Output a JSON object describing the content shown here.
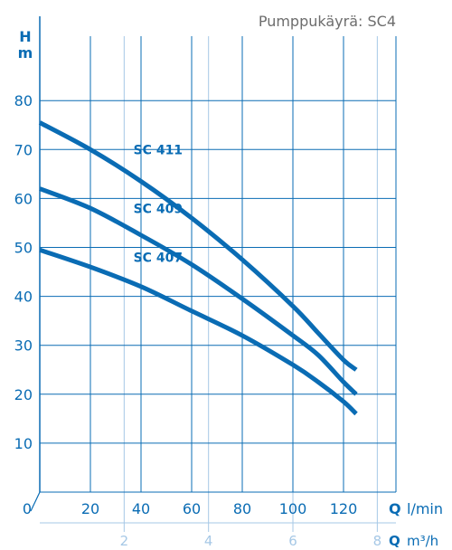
{
  "chart_data": {
    "type": "line",
    "title": "Pumppukäyrä: SC4",
    "y_axis": {
      "label_top": "H",
      "label_unit": "m",
      "ticks": [
        10,
        20,
        30,
        40,
        50,
        60,
        70,
        80
      ],
      "range": [
        0,
        90
      ]
    },
    "x_axis": {
      "label_letter": "Q",
      "label_unit": "l/min",
      "ticks": [
        0,
        20,
        40,
        60,
        80,
        100,
        120
      ],
      "range": [
        0,
        145
      ]
    },
    "x2_axis": {
      "label_letter": "Q",
      "label_unit": "m³/h",
      "ticks": [
        2,
        4,
        6,
        8
      ]
    },
    "series": [
      {
        "name": "SC 411",
        "x": [
          0,
          20,
          40,
          60,
          80,
          100,
          110,
          120,
          125
        ],
        "y": [
          75.5,
          70,
          63.5,
          56,
          47.5,
          38,
          32.5,
          27,
          25
        ]
      },
      {
        "name": "SC 409",
        "x": [
          0,
          20,
          40,
          60,
          80,
          100,
          110,
          120,
          125
        ],
        "y": [
          62,
          58,
          52.5,
          46.5,
          39.5,
          32,
          28,
          22.5,
          20
        ]
      },
      {
        "name": "SC 407",
        "x": [
          0,
          20,
          40,
          60,
          80,
          100,
          110,
          120,
          125
        ],
        "y": [
          49.5,
          46,
          42,
          37,
          32,
          26,
          22.5,
          18.5,
          16
        ]
      }
    ],
    "grid": true,
    "color": "#0a6cb4",
    "grid_color": "#0a6cb4",
    "secondary_grid_color": "#a6c8e6"
  }
}
